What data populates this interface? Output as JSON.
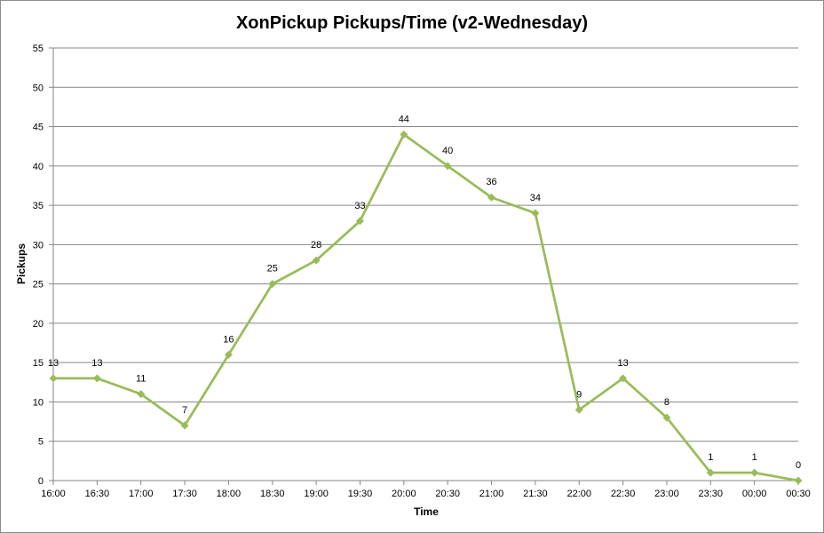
{
  "chart_data": {
    "type": "line",
    "title": "XonPickup Pickups/Time (v2-Wednesday)",
    "xlabel": "Time",
    "ylabel": "Pickups",
    "ylim": [
      0,
      55
    ],
    "yticks": [
      0,
      5,
      10,
      15,
      20,
      25,
      30,
      35,
      40,
      45,
      50,
      55
    ],
    "grid": true,
    "legend": "none",
    "categories": [
      "16:00",
      "16:30",
      "17:00",
      "17:30",
      "18:00",
      "18:30",
      "19:00",
      "19:30",
      "20:00",
      "20:30",
      "21:00",
      "21:30",
      "22:00",
      "22:30",
      "23:00",
      "23:30",
      "00:00",
      "00:30"
    ],
    "series": [
      {
        "values": [
          13,
          13,
          11,
          7,
          16,
          25,
          28,
          33,
          44,
          40,
          36,
          34,
          9,
          13,
          8,
          1,
          1,
          0
        ],
        "color": "#9bbb59",
        "marker": "diamond",
        "data_labels": true
      }
    ],
    "colors": {
      "line": "#9bbb59",
      "grid": "#868686",
      "axis": "#868686"
    }
  }
}
